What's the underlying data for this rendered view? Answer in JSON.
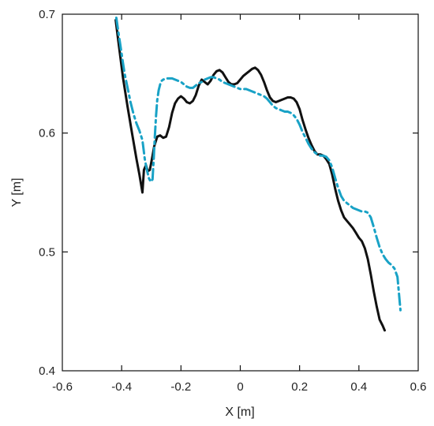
{
  "chart_data": {
    "type": "line",
    "title": "",
    "xlabel": "X [m]",
    "ylabel": "Y [m]",
    "xlim": [
      -0.6,
      0.6
    ],
    "ylim": [
      0.4,
      0.7
    ],
    "xticks": [
      -0.6,
      -0.4,
      -0.2,
      0,
      0.2,
      0.4,
      0.6
    ],
    "yticks": [
      0.4,
      0.5,
      0.6,
      0.7
    ],
    "xtick_labels": [
      "-0.6",
      "-0.4",
      "-0.2",
      "0",
      "0.2",
      "0.4",
      "0.6"
    ],
    "ytick_labels": [
      "0.4",
      "0.5",
      "0.6",
      "0.7"
    ],
    "grid": false,
    "legend": "none",
    "series": [
      {
        "style": "solid",
        "color": "#111111",
        "x": [
          -0.42,
          -0.41,
          -0.395,
          -0.38,
          -0.365,
          -0.35,
          -0.34,
          -0.33,
          -0.325,
          -0.318,
          -0.312,
          -0.305,
          -0.298,
          -0.29,
          -0.28,
          -0.27,
          -0.26,
          -0.25,
          -0.24,
          -0.23,
          -0.22,
          -0.21,
          -0.2,
          -0.19,
          -0.18,
          -0.17,
          -0.16,
          -0.15,
          -0.14,
          -0.13,
          -0.12,
          -0.11,
          -0.1,
          -0.09,
          -0.08,
          -0.07,
          -0.06,
          -0.05,
          -0.04,
          -0.03,
          -0.02,
          -0.01,
          0,
          0.01,
          0.02,
          0.03,
          0.04,
          0.05,
          0.06,
          0.07,
          0.08,
          0.09,
          0.1,
          0.11,
          0.12,
          0.13,
          0.14,
          0.15,
          0.16,
          0.17,
          0.18,
          0.19,
          0.2,
          0.21,
          0.22,
          0.23,
          0.24,
          0.25,
          0.26,
          0.27,
          0.28,
          0.29,
          0.3,
          0.31,
          0.32,
          0.33,
          0.34,
          0.35,
          0.36,
          0.37,
          0.38,
          0.39,
          0.4,
          0.41,
          0.42,
          0.43,
          0.44,
          0.45,
          0.46,
          0.47,
          0.48,
          0.487
        ],
        "y": [
          0.695,
          0.675,
          0.646,
          0.622,
          0.6,
          0.578,
          0.565,
          0.55,
          0.569,
          0.573,
          0.568,
          0.569,
          0.578,
          0.589,
          0.597,
          0.598,
          0.596,
          0.597,
          0.605,
          0.617,
          0.625,
          0.629,
          0.631,
          0.629,
          0.626,
          0.625,
          0.627,
          0.632,
          0.64,
          0.645,
          0.643,
          0.641,
          0.644,
          0.649,
          0.652,
          0.653,
          0.651,
          0.647,
          0.643,
          0.641,
          0.641,
          0.642,
          0.645,
          0.648,
          0.65,
          0.652,
          0.654,
          0.655,
          0.653,
          0.649,
          0.643,
          0.636,
          0.63,
          0.627,
          0.626,
          0.627,
          0.628,
          0.629,
          0.63,
          0.63,
          0.629,
          0.626,
          0.62,
          0.611,
          0.603,
          0.596,
          0.59,
          0.585,
          0.582,
          0.582,
          0.581,
          0.578,
          0.574,
          0.565,
          0.553,
          0.543,
          0.535,
          0.529,
          0.526,
          0.523,
          0.52,
          0.516,
          0.512,
          0.509,
          0.503,
          0.494,
          0.481,
          0.467,
          0.454,
          0.443,
          0.438,
          0.434
        ]
      },
      {
        "style": "dash-dot",
        "color": "#19a2c6",
        "x": [
          -0.418,
          -0.415,
          -0.41,
          -0.405,
          -0.398,
          -0.39,
          -0.38,
          -0.37,
          -0.36,
          -0.35,
          -0.34,
          -0.33,
          -0.322,
          -0.315,
          -0.308,
          -0.302,
          -0.296,
          -0.292,
          -0.288,
          -0.284,
          -0.28,
          -0.275,
          -0.27,
          -0.265,
          -0.26,
          -0.25,
          -0.24,
          -0.23,
          -0.22,
          -0.21,
          -0.2,
          -0.19,
          -0.18,
          -0.17,
          -0.16,
          -0.15,
          -0.14,
          -0.13,
          -0.12,
          -0.11,
          -0.1,
          -0.09,
          -0.08,
          -0.07,
          -0.06,
          -0.05,
          -0.04,
          -0.03,
          -0.02,
          -0.01,
          0,
          0.01,
          0.02,
          0.03,
          0.04,
          0.05,
          0.06,
          0.07,
          0.08,
          0.09,
          0.1,
          0.11,
          0.12,
          0.13,
          0.14,
          0.15,
          0.16,
          0.17,
          0.18,
          0.19,
          0.2,
          0.21,
          0.22,
          0.23,
          0.24,
          0.25,
          0.26,
          0.27,
          0.28,
          0.29,
          0.3,
          0.31,
          0.32,
          0.33,
          0.34,
          0.35,
          0.36,
          0.37,
          0.38,
          0.39,
          0.4,
          0.41,
          0.42,
          0.43,
          0.44,
          0.45,
          0.46,
          0.47,
          0.48,
          0.49,
          0.5,
          0.51,
          0.52,
          0.53,
          0.54
        ],
        "y": [
          0.697,
          0.692,
          0.683,
          0.675,
          0.663,
          0.65,
          0.638,
          0.626,
          0.616,
          0.608,
          0.602,
          0.594,
          0.578,
          0.569,
          0.562,
          0.559,
          0.561,
          0.578,
          0.598,
          0.615,
          0.628,
          0.636,
          0.641,
          0.644,
          0.645,
          0.646,
          0.646,
          0.646,
          0.645,
          0.644,
          0.643,
          0.641,
          0.639,
          0.638,
          0.638,
          0.64,
          0.642,
          0.643,
          0.645,
          0.646,
          0.647,
          0.647,
          0.646,
          0.645,
          0.643,
          0.642,
          0.641,
          0.64,
          0.639,
          0.638,
          0.637,
          0.637,
          0.637,
          0.636,
          0.635,
          0.634,
          0.633,
          0.632,
          0.631,
          0.629,
          0.626,
          0.623,
          0.621,
          0.62,
          0.619,
          0.618,
          0.618,
          0.617,
          0.615,
          0.612,
          0.607,
          0.601,
          0.596,
          0.591,
          0.587,
          0.584,
          0.582,
          0.581,
          0.581,
          0.58,
          0.577,
          0.571,
          0.562,
          0.554,
          0.547,
          0.543,
          0.541,
          0.539,
          0.537,
          0.536,
          0.535,
          0.534,
          0.534,
          0.533,
          0.529,
          0.521,
          0.512,
          0.504,
          0.498,
          0.494,
          0.491,
          0.489,
          0.486,
          0.479,
          0.451
        ]
      }
    ]
  }
}
